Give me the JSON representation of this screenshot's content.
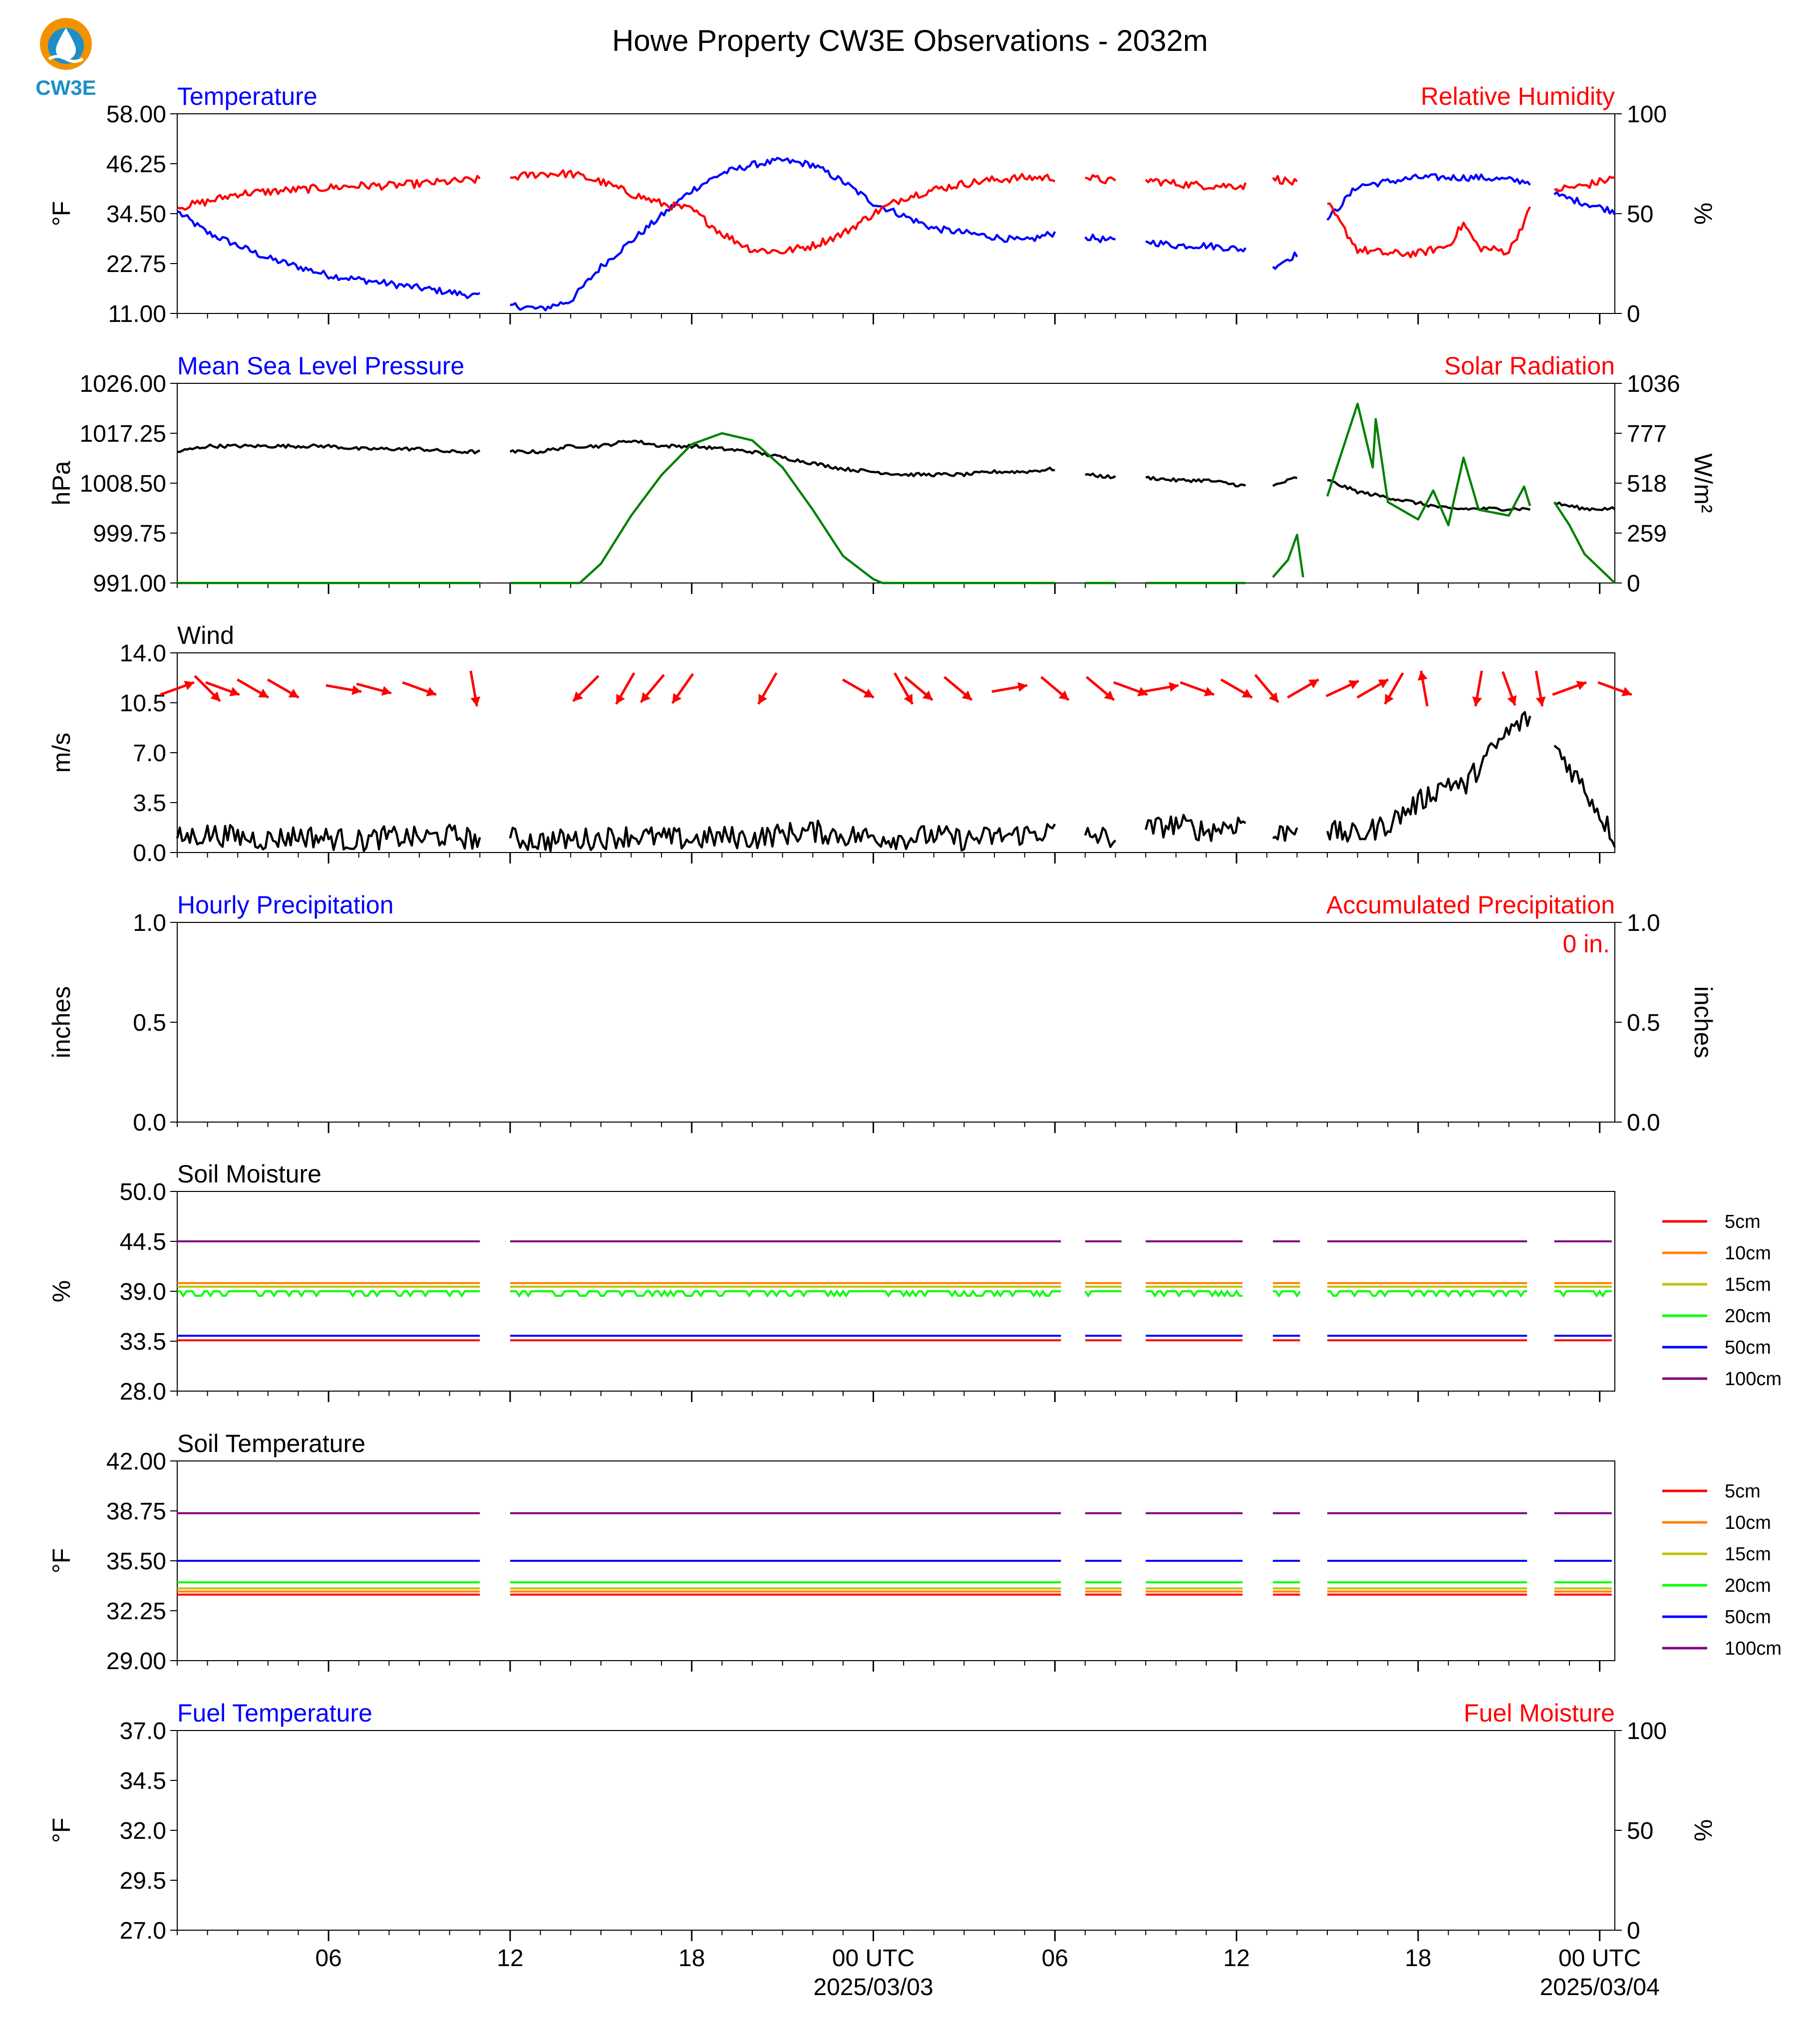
{
  "title": "Howe Property CW3E Observations - 2032m",
  "logo": {
    "text": "CW3E",
    "colors": {
      "ring": "#f39200",
      "drop": "#1d8fc6"
    }
  },
  "colors": {
    "blue": "#0000ff",
    "red": "#ff0000",
    "green": "#008000",
    "black": "#000000"
  },
  "time_axis": {
    "start_hour": 0,
    "end_hour": 47.5,
    "tick_labels": [
      {
        "hour": 5,
        "label": "06"
      },
      {
        "hour": 11,
        "label": "12"
      },
      {
        "hour": 17,
        "label": "18"
      },
      {
        "hour": 23,
        "label": "00 UTC",
        "sub": "2025/03/03"
      },
      {
        "hour": 29,
        "label": "06"
      },
      {
        "hour": 35,
        "label": "12"
      },
      {
        "hour": 41,
        "label": "18"
      },
      {
        "hour": 47,
        "label": "00 UTC",
        "sub": "2025/03/04"
      }
    ]
  },
  "chart_data": [
    {
      "id": "temperature",
      "type": "line",
      "left_title": "Temperature",
      "right_title": "Relative Humidity",
      "ylabel": "°F",
      "ylabel_right": "%",
      "ylim": [
        11.0,
        58.0
      ],
      "yticks": [
        "11.00",
        "22.75",
        "34.50",
        "46.25",
        "58.00"
      ],
      "ylim_right": [
        0,
        100
      ],
      "yticks_right": [
        "0",
        "50",
        "100"
      ],
      "series": [
        {
          "name": "Temperature",
          "axis": "left",
          "color": "#0000ff",
          "x": [
            0,
            1,
            2,
            3,
            4,
            5,
            6,
            7,
            8,
            9,
            10,
            11,
            12,
            13,
            14,
            15,
            16,
            17,
            18,
            19,
            20,
            21,
            22,
            23,
            24,
            25,
            26,
            27,
            28,
            29,
            30,
            31,
            32,
            33,
            34,
            35.3,
            36.2,
            37,
            38,
            39,
            40,
            41,
            42,
            43,
            44.7,
            45.5,
            46.5,
            47.5
          ],
          "y": [
            35,
            30,
            27,
            24,
            22,
            20,
            19,
            18,
            17,
            16,
            15,
            13,
            12,
            14,
            22,
            28,
            34,
            40,
            44,
            46,
            47,
            46,
            42,
            37,
            34,
            31,
            30,
            29,
            28,
            30,
            29,
            28,
            28,
            27,
            27,
            26,
            22,
            25,
            33,
            41,
            42,
            43,
            43,
            43,
            42,
            39,
            37,
            35
          ]
        },
        {
          "name": "Relative Humidity",
          "axis": "right",
          "color": "#ff0000",
          "x": [
            0,
            1,
            2,
            3,
            4,
            5,
            6,
            7,
            8,
            9,
            10,
            11,
            12,
            13,
            14,
            15,
            16,
            17,
            18,
            19,
            20,
            21,
            22,
            23,
            24,
            25,
            26,
            27,
            28,
            29,
            30,
            31,
            32,
            33,
            34,
            35.3,
            36.2,
            37,
            38,
            39,
            40,
            41,
            42,
            42.5,
            43,
            44,
            44.7,
            45.5,
            46.5,
            47.5
          ],
          "y": [
            53,
            56,
            60,
            61,
            62,
            63,
            64,
            64,
            65,
            66,
            67,
            68,
            70,
            70,
            66,
            60,
            55,
            52,
            40,
            32,
            31,
            34,
            40,
            50,
            58,
            62,
            65,
            67,
            68,
            68,
            68,
            66,
            67,
            65,
            64,
            64,
            68,
            65,
            55,
            32,
            30,
            30,
            34,
            45,
            33,
            31,
            52,
            62,
            64,
            68
          ]
        }
      ]
    },
    {
      "id": "pressure",
      "type": "line",
      "left_title": "Mean Sea Level Pressure",
      "right_title": "Solar Radiation",
      "ylabel": "hPa",
      "ylabel_right": "W/m²",
      "ylim": [
        991.0,
        1026.0
      ],
      "yticks": [
        "991.00",
        "999.75",
        "1008.50",
        "1017.25",
        "1026.00"
      ],
      "ylim_right": [
        0,
        1036
      ],
      "yticks_right": [
        "0",
        "259",
        "518",
        "777",
        "1036"
      ],
      "series": [
        {
          "name": "Mean Sea Level Pressure",
          "axis": "left",
          "color": "#000000",
          "x": [
            0,
            1,
            2,
            3,
            4,
            5,
            6,
            7,
            8,
            9,
            10,
            11,
            12,
            13,
            14,
            15,
            16,
            17,
            18,
            19,
            20,
            21,
            22,
            23,
            24,
            25,
            26,
            27,
            28,
            29,
            30,
            31,
            32,
            33,
            34,
            35.3,
            36.2,
            37,
            38,
            39,
            40,
            41,
            42,
            43,
            44.7,
            45.5,
            46.5,
            47.5
          ],
          "y": [
            1014,
            1015,
            1015,
            1015,
            1015,
            1015,
            1014.5,
            1014.5,
            1014.5,
            1014,
            1014,
            1014,
            1014,
            1015,
            1015,
            1016,
            1015,
            1015,
            1014.5,
            1014,
            1013,
            1012,
            1011,
            1010.5,
            1010,
            1010,
            1010,
            1010.5,
            1010.5,
            1011,
            1010,
            1009.5,
            1009.5,
            1009,
            1009,
            1008,
            1008,
            1009.5,
            1009,
            1007,
            1006,
            1005,
            1004,
            1004,
            1004,
            1005,
            1004,
            1004
          ]
        },
        {
          "name": "Solar Radiation",
          "axis": "right",
          "color": "#008000",
          "x": [
            0,
            1,
            2,
            3,
            4,
            5,
            6,
            7,
            8,
            9,
            10,
            11,
            12,
            13,
            13.3,
            14,
            15,
            16,
            17,
            18,
            19,
            20,
            21,
            22,
            23,
            23.3,
            24,
            25,
            26,
            27,
            28,
            29,
            30,
            31,
            32,
            33,
            34,
            35.3,
            36.2,
            36.7,
            37,
            37.2,
            38,
            39,
            39.5,
            39.6,
            40,
            41,
            41.5,
            42,
            42.5,
            43,
            44,
            44.5,
            44.7,
            45.5,
            46,
            46.5,
            47.5
          ],
          "y": [
            0,
            0,
            0,
            0,
            0,
            0,
            0,
            0,
            0,
            0,
            0,
            0,
            0,
            0,
            0,
            100,
            350,
            560,
            720,
            777,
            740,
            600,
            380,
            140,
            20,
            0,
            0,
            0,
            0,
            0,
            0,
            0,
            0,
            0,
            0,
            0,
            0,
            0,
            30,
            120,
            250,
            30,
            450,
            930,
            600,
            850,
            420,
            330,
            480,
            300,
            650,
            380,
            350,
            500,
            400,
            420,
            300,
            150,
            0
          ]
        }
      ]
    },
    {
      "id": "wind",
      "type": "line",
      "left_title": "Wind",
      "ylabel": "m/s",
      "ylim": [
        0,
        14
      ],
      "yticks": [
        "0.0",
        "3.5",
        "7.0",
        "10.5",
        "14.0"
      ],
      "series": [
        {
          "name": "Wind Speed",
          "axis": "left",
          "color": "#000000",
          "x": [
            0,
            1,
            2,
            3,
            4,
            5,
            6,
            7,
            8,
            9,
            10,
            11,
            12,
            13,
            14,
            15,
            16,
            17,
            18,
            19,
            20,
            21,
            22,
            23,
            24,
            25,
            26,
            27,
            28,
            29,
            30,
            31,
            32,
            33,
            34,
            35.3,
            36.2,
            37,
            38,
            39,
            40,
            41,
            42,
            42.5,
            43,
            44,
            44.7,
            45.5,
            46.5,
            47.5
          ],
          "y": [
            1.0,
            1.3,
            1.1,
            0.9,
            1.2,
            1.0,
            0.8,
            1.1,
            1.0,
            1.2,
            0.9,
            1.0,
            0.8,
            0.9,
            1.0,
            1.2,
            1.0,
            0.9,
            1.1,
            1.0,
            1.3,
            1.5,
            1.2,
            1.1,
            1.0,
            1.2,
            0.9,
            1.1,
            1.3,
            1.5,
            1.2,
            1.0,
            1.6,
            2.0,
            1.5,
            2.2,
            1.0,
            2.0,
            1.5,
            1.2,
            2.0,
            3.5,
            5.0,
            4.5,
            6.0,
            8.5,
            9.5,
            7.5,
            4.5,
            1.0
          ]
        }
      ],
      "wind_arrows": {
        "y": 11.5,
        "color": "#ff0000",
        "x": [
          0,
          1,
          1.5,
          2.5,
          3.5,
          5.5,
          6.5,
          8,
          9.8,
          13.5,
          14.8,
          15.7,
          16.7,
          19.5,
          22.5,
          24,
          24.5,
          25.8,
          27.5,
          29,
          30.5,
          31.5,
          32.5,
          33.7,
          35,
          36,
          37.2,
          38.5,
          39.5,
          40.2,
          41.2,
          43,
          44,
          45,
          46,
          47.5
        ],
        "dir": [
          250,
          315,
          290,
          300,
          300,
          280,
          285,
          290,
          350,
          45,
          30,
          40,
          35,
          30,
          300,
          330,
          310,
          310,
          260,
          310,
          310,
          290,
          260,
          290,
          300,
          320,
          240,
          245,
          240,
          30,
          170,
          10,
          340,
          350,
          250,
          290
        ]
      }
    },
    {
      "id": "precipitation",
      "type": "line",
      "left_title": "Hourly Precipitation",
      "right_title": "Accumulated Precipitation",
      "annotation": "0 in.",
      "ylabel": "inches",
      "ylabel_right": "inches",
      "ylim": [
        0,
        1.0
      ],
      "yticks": [
        "0.0",
        "0.5",
        "1.0"
      ],
      "ylim_right": [
        0,
        1.0
      ],
      "yticks_right": [
        "0.0",
        "0.5",
        "1.0"
      ],
      "series": [
        {
          "name": "Hourly Precipitation",
          "axis": "left",
          "color": "#0000ff",
          "x": [
            0,
            47.5
          ],
          "y": [
            0,
            0
          ]
        },
        {
          "name": "Accumulated Precipitation",
          "axis": "right",
          "color": "#ff0000",
          "x": [
            0,
            47.5
          ],
          "y": [
            0,
            0
          ]
        }
      ]
    },
    {
      "id": "soil_moisture",
      "type": "line",
      "left_title": "Soil Moisture",
      "ylabel": "%",
      "ylim": [
        28.0,
        50.0
      ],
      "yticks": [
        "28.0",
        "33.5",
        "39.0",
        "44.5",
        "50.0"
      ],
      "legend": [
        "5cm",
        "10cm",
        "15cm",
        "20cm",
        "50cm",
        "100cm"
      ],
      "series": [
        {
          "name": "5cm",
          "color": "#ff0000",
          "level": 33.6
        },
        {
          "name": "10cm",
          "color": "#ff8000",
          "level": 39.9
        },
        {
          "name": "15cm",
          "color": "#bfbf00",
          "level": 39.5
        },
        {
          "name": "20cm",
          "color": "#00ff00",
          "level": 39.0
        },
        {
          "name": "50cm",
          "color": "#0000ff",
          "level": 34.1
        },
        {
          "name": "100cm",
          "color": "#800080",
          "level": 44.5
        }
      ]
    },
    {
      "id": "soil_temperature",
      "type": "line",
      "left_title": "Soil Temperature",
      "ylabel": "°F",
      "ylim": [
        29.0,
        42.0
      ],
      "yticks": [
        "29.00",
        "32.25",
        "35.50",
        "38.75",
        "42.00"
      ],
      "legend": [
        "5cm",
        "10cm",
        "15cm",
        "20cm",
        "50cm",
        "100cm"
      ],
      "series": [
        {
          "name": "5cm",
          "color": "#ff0000",
          "level": 33.3
        },
        {
          "name": "10cm",
          "color": "#ff8000",
          "level": 33.5
        },
        {
          "name": "15cm",
          "color": "#bfbf00",
          "level": 33.7
        },
        {
          "name": "20cm",
          "color": "#00ff00",
          "level": 34.1
        },
        {
          "name": "50cm",
          "color": "#0000ff",
          "level": 35.5
        },
        {
          "name": "100cm",
          "color": "#800080",
          "level": 38.6
        }
      ]
    },
    {
      "id": "fuel",
      "type": "line",
      "left_title": "Fuel Temperature",
      "right_title": "Fuel Moisture",
      "ylabel": "°F",
      "ylabel_right": "%",
      "ylim": [
        27.0,
        37.0
      ],
      "yticks": [
        "27.0",
        "29.5",
        "32.0",
        "34.5",
        "37.0"
      ],
      "ylim_right": [
        0,
        100
      ],
      "yticks_right": [
        "0",
        "50",
        "100"
      ],
      "series": []
    }
  ]
}
